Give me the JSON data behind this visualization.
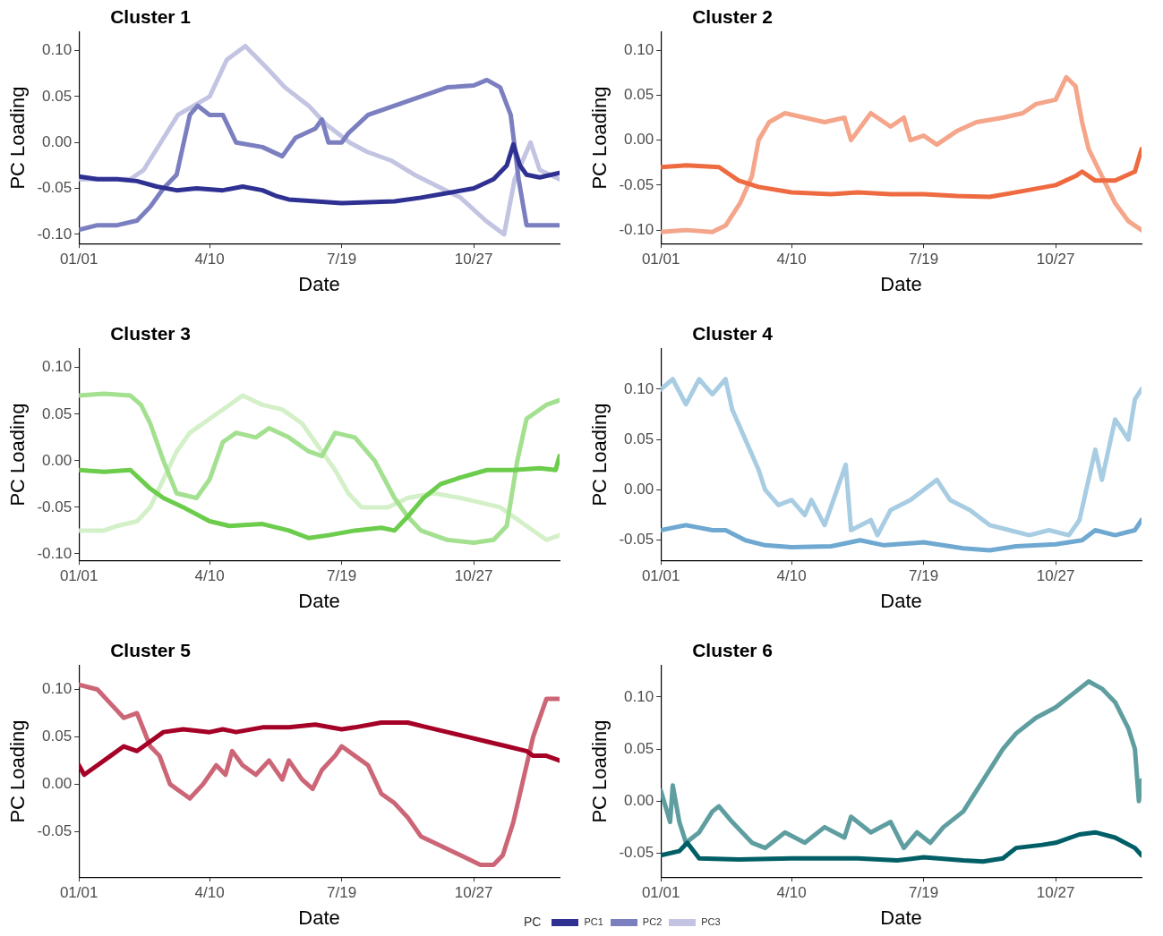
{
  "chart_data": [
    {
      "type": "line",
      "title": "Cluster 1",
      "xlabel": "Date",
      "ylabel": "PC Loading",
      "legend": "bottom",
      "legend_title": "PC",
      "marker": "none",
      "line_style": "solid",
      "xlim": [
        "--01-01",
        "--12-31"
      ],
      "xticks": [
        {
          "value": "--01-01",
          "label": "01/01"
        },
        {
          "value": "--04-10",
          "label": "4/10"
        },
        {
          "value": "--07-19",
          "label": "7/19"
        },
        {
          "value": "--10-27",
          "label": "10/27"
        }
      ],
      "ylim": [
        -0.11,
        0.12
      ],
      "yticks": [
        {
          "value": -0.1,
          "label": "-0.10"
        },
        {
          "value": -0.05,
          "label": "-0.05"
        },
        {
          "value": 0,
          "label": "0.00"
        },
        {
          "value": 0.05,
          "label": "0.05"
        },
        {
          "value": 0.1,
          "label": "0.10"
        }
      ],
      "series": [
        {
          "name": "PC1",
          "color": "#2e3192",
          "x": [
            "--01-01",
            "--01-15",
            "--01-30",
            "--02-14",
            "--03-01",
            "--03-16",
            "--03-31",
            "--04-20",
            "--05-05",
            "--05-20",
            "--05-30",
            "--06-09",
            "--06-29",
            "--07-19",
            "--08-08",
            "--08-28",
            "--09-17",
            "--10-07",
            "--10-27",
            "--11-11",
            "--11-21",
            "--11-26",
            "--12-01",
            "--12-06",
            "--12-16",
            "--12-31"
          ],
          "values": [
            -0.037,
            -0.04,
            -0.04,
            -0.042,
            -0.048,
            -0.052,
            -0.05,
            -0.052,
            -0.048,
            -0.052,
            -0.058,
            -0.062,
            -0.064,
            -0.066,
            -0.065,
            -0.064,
            -0.06,
            -0.055,
            -0.05,
            -0.04,
            -0.025,
            -0.002,
            -0.025,
            -0.035,
            -0.038,
            -0.033
          ]
        },
        {
          "name": "PC2",
          "color": "#7b7fc0",
          "x": [
            "--01-01",
            "--01-15",
            "--01-30",
            "--02-14",
            "--02-24",
            "--03-06",
            "--03-16",
            "--03-26",
            "--04-01",
            "--04-10",
            "--04-20",
            "--04-30",
            "--05-20",
            "--06-04",
            "--06-14",
            "--06-29",
            "--07-04",
            "--07-09",
            "--07-19",
            "--07-24",
            "--08-08",
            "--08-28",
            "--09-17",
            "--10-07",
            "--10-27",
            "--11-06",
            "--11-16",
            "--11-24",
            "--11-30",
            "--12-06",
            "--12-16",
            "--12-31"
          ],
          "values": [
            -0.095,
            -0.09,
            -0.09,
            -0.085,
            -0.07,
            -0.05,
            -0.035,
            0.03,
            0.04,
            0.03,
            0.03,
            0,
            -0.005,
            -0.015,
            0.005,
            0.015,
            0.025,
            0,
            0,
            0.01,
            0.03,
            0.04,
            0.05,
            0.06,
            0.062,
            0.068,
            0.06,
            0.03,
            -0.04,
            -0.09,
            -0.09,
            -0.09
          ]
        },
        {
          "name": "PC3",
          "color": "#c2c4e2",
          "x": [
            "--01-01",
            "--01-20",
            "--02-09",
            "--02-19",
            "--03-04",
            "--03-17",
            "--04-10",
            "--04-23",
            "--05-07",
            "--05-24",
            "--06-06",
            "--06-24",
            "--07-07",
            "--07-25",
            "--08-07",
            "--08-26",
            "--09-12",
            "--09-26",
            "--10-17",
            "--11-05",
            "--11-19",
            "--11-27",
            "--12-09",
            "--12-16",
            "--12-31"
          ],
          "values": [
            -0.04,
            -0.04,
            -0.04,
            -0.03,
            0,
            0.03,
            0.05,
            0.09,
            0.105,
            0.08,
            0.06,
            0.04,
            0.02,
            0,
            -0.01,
            -0.02,
            -0.035,
            -0.045,
            -0.06,
            -0.085,
            -0.1,
            -0.04,
            0,
            -0.03,
            -0.04
          ]
        }
      ]
    },
    {
      "type": "line",
      "title": "Cluster 2",
      "xlabel": "Date",
      "ylabel": "PC Loading",
      "marker": "none",
      "line_style": "solid",
      "xlim": [
        "--01-01",
        "--12-31"
      ],
      "xticks": [
        {
          "value": "--01-01",
          "label": "01/01"
        },
        {
          "value": "--04-10",
          "label": "4/10"
        },
        {
          "value": "--07-19",
          "label": "7/19"
        },
        {
          "value": "--10-27",
          "label": "10/27"
        }
      ],
      "ylim": [
        -0.115,
        0.12
      ],
      "yticks": [
        {
          "value": -0.1,
          "label": "-0.10"
        },
        {
          "value": -0.05,
          "label": "-0.05"
        },
        {
          "value": 0,
          "label": "0.00"
        },
        {
          "value": 0.05,
          "label": "0.05"
        },
        {
          "value": 0.1,
          "label": "0.10"
        }
      ],
      "series": [
        {
          "color": "#ee6a40",
          "x": [
            "--01-01",
            "--01-20",
            "--02-14",
            "--03-01",
            "--03-16",
            "--04-10",
            "--05-10",
            "--05-30",
            "--06-24",
            "--07-19",
            "--08-13",
            "--09-07",
            "--09-27",
            "--10-27",
            "--11-11",
            "--11-16",
            "--11-26",
            "--12-11",
            "--12-26",
            "--12-31"
          ],
          "values": [
            -0.03,
            -0.028,
            -0.03,
            -0.045,
            -0.052,
            -0.058,
            -0.06,
            -0.058,
            -0.06,
            -0.06,
            -0.062,
            -0.063,
            -0.058,
            -0.05,
            -0.04,
            -0.035,
            -0.045,
            -0.045,
            -0.035,
            -0.01
          ]
        },
        {
          "color": "#f4a58a",
          "x": [
            "--01-01",
            "--01-20",
            "--02-09",
            "--02-19",
            "--03-02",
            "--03-11",
            "--03-16",
            "--03-24",
            "--04-05",
            "--04-20",
            "--05-05",
            "--05-20",
            "--05-25",
            "--06-09",
            "--06-24",
            "--07-04",
            "--07-09",
            "--07-19",
            "--07-29",
            "--08-13",
            "--08-28",
            "--09-17",
            "--10-02",
            "--10-12",
            "--10-27",
            "--11-04",
            "--11-11",
            "--11-16",
            "--11-21",
            "--12-01",
            "--12-11",
            "--12-21",
            "--12-31"
          ],
          "values": [
            -0.102,
            -0.1,
            -0.102,
            -0.095,
            -0.07,
            -0.04,
            0,
            0.02,
            0.03,
            0.025,
            0.02,
            0.025,
            0,
            0.03,
            0.015,
            0.025,
            0,
            0.005,
            -0.005,
            0.01,
            0.02,
            0.025,
            0.03,
            0.04,
            0.045,
            0.07,
            0.06,
            0.02,
            -0.01,
            -0.04,
            -0.07,
            -0.09,
            -0.1
          ]
        }
      ]
    },
    {
      "type": "line",
      "title": "Cluster 3",
      "xlabel": "Date",
      "ylabel": "PC Loading",
      "marker": "none",
      "line_style": "solid",
      "xlim": [
        "--01-01",
        "--12-31"
      ],
      "xticks": [
        {
          "value": "--01-01",
          "label": "01/01"
        },
        {
          "value": "--04-10",
          "label": "4/10"
        },
        {
          "value": "--07-19",
          "label": "7/19"
        },
        {
          "value": "--10-27",
          "label": "10/27"
        }
      ],
      "ylim": [
        -0.107,
        0.12
      ],
      "yticks": [
        {
          "value": -0.1,
          "label": "-0.10"
        },
        {
          "value": -0.05,
          "label": "-0.05"
        },
        {
          "value": 0,
          "label": "0.00"
        },
        {
          "value": 0.05,
          "label": "0.05"
        },
        {
          "value": 0.1,
          "label": "0.10"
        }
      ],
      "series": [
        {
          "color": "#6ccc4b",
          "x": [
            "--01-01",
            "--01-20",
            "--02-09",
            "--02-24",
            "--03-06",
            "--03-21",
            "--04-10",
            "--04-25",
            "--05-20",
            "--06-09",
            "--06-24",
            "--07-09",
            "--07-29",
            "--08-18",
            "--08-28",
            "--09-07",
            "--09-19",
            "--10-02",
            "--10-17",
            "--11-06",
            "--11-26",
            "--12-16",
            "--12-28",
            "--12-31"
          ],
          "values": [
            -0.01,
            -0.012,
            -0.01,
            -0.03,
            -0.04,
            -0.05,
            -0.065,
            -0.07,
            -0.068,
            -0.075,
            -0.083,
            -0.08,
            -0.075,
            -0.072,
            -0.075,
            -0.06,
            -0.04,
            -0.025,
            -0.018,
            -0.01,
            -0.01,
            -0.008,
            -0.01,
            0.005
          ]
        },
        {
          "color": "#a3e08f",
          "x": [
            "--01-01",
            "--01-20",
            "--02-09",
            "--02-17",
            "--02-24",
            "--03-06",
            "--03-16",
            "--03-31",
            "--04-10",
            "--04-20",
            "--04-30",
            "--05-15",
            "--05-25",
            "--06-09",
            "--06-24",
            "--07-04",
            "--07-14",
            "--07-29",
            "--08-13",
            "--08-28",
            "--09-07",
            "--09-17",
            "--10-07",
            "--10-27",
            "--11-11",
            "--11-21",
            "--11-29",
            "--12-06",
            "--12-21",
            "--12-31"
          ],
          "values": [
            0.07,
            0.072,
            0.07,
            0.06,
            0.04,
            0,
            -0.035,
            -0.04,
            -0.02,
            0.02,
            0.03,
            0.025,
            0.035,
            0.025,
            0.01,
            0.005,
            0.03,
            0.025,
            0,
            -0.04,
            -0.06,
            -0.075,
            -0.085,
            -0.088,
            -0.085,
            -0.07,
            0,
            0.045,
            0.06,
            0.065
          ]
        },
        {
          "color": "#d4f0c8",
          "x": [
            "--01-01",
            "--01-20",
            "--01-30",
            "--02-14",
            "--02-24",
            "--03-06",
            "--03-16",
            "--03-26",
            "--04-10",
            "--04-25",
            "--05-05",
            "--05-20",
            "--06-04",
            "--06-19",
            "--07-04",
            "--07-14",
            "--07-24",
            "--08-03",
            "--08-23",
            "--09-07",
            "--09-27",
            "--10-17",
            "--11-01",
            "--11-16",
            "--12-06",
            "--12-21",
            "--12-31"
          ],
          "values": [
            -0.075,
            -0.075,
            -0.07,
            -0.065,
            -0.05,
            -0.02,
            0.01,
            0.03,
            0.045,
            0.06,
            0.07,
            0.06,
            0.055,
            0.04,
            0.01,
            -0.01,
            -0.035,
            -0.05,
            -0.05,
            -0.04,
            -0.035,
            -0.04,
            -0.045,
            -0.05,
            -0.07,
            -0.085,
            -0.08
          ]
        }
      ]
    },
    {
      "type": "line",
      "title": "Cluster 4",
      "xlabel": "Date",
      "ylabel": "PC Loading",
      "marker": "none",
      "line_style": "solid",
      "xlim": [
        "--01-01",
        "--12-31"
      ],
      "xticks": [
        {
          "value": "--01-01",
          "label": "01/01"
        },
        {
          "value": "--04-10",
          "label": "4/10"
        },
        {
          "value": "--07-19",
          "label": "7/19"
        },
        {
          "value": "--10-27",
          "label": "10/27"
        }
      ],
      "ylim": [
        -0.07,
        0.14
      ],
      "yticks": [
        {
          "value": -0.05,
          "label": "-0.05"
        },
        {
          "value": 0,
          "label": "0.00"
        },
        {
          "value": 0.05,
          "label": "0.05"
        },
        {
          "value": 0.1,
          "label": "0.10"
        }
      ],
      "series": [
        {
          "color": "#6fa8d0",
          "x": [
            "--01-01",
            "--01-20",
            "--02-09",
            "--02-19",
            "--03-06",
            "--03-21",
            "--04-10",
            "--05-10",
            "--06-01",
            "--06-19",
            "--07-19",
            "--08-18",
            "--09-07",
            "--09-27",
            "--10-27",
            "--11-16",
            "--11-26",
            "--12-11",
            "--12-26",
            "--12-31"
          ],
          "values": [
            -0.04,
            -0.035,
            -0.04,
            -0.04,
            -0.05,
            -0.055,
            -0.057,
            -0.056,
            -0.05,
            -0.055,
            -0.052,
            -0.058,
            -0.06,
            -0.056,
            -0.054,
            -0.05,
            -0.04,
            -0.045,
            -0.04,
            -0.03
          ]
        },
        {
          "color": "#a8cde3",
          "x": [
            "--01-01",
            "--01-10",
            "--01-20",
            "--01-30",
            "--02-09",
            "--02-19",
            "--02-24",
            "--03-06",
            "--03-16",
            "--03-21",
            "--03-31",
            "--04-10",
            "--04-20",
            "--04-25",
            "--05-05",
            "--05-21",
            "--05-25",
            "--06-09",
            "--06-14",
            "--06-24",
            "--07-09",
            "--07-19",
            "--07-29",
            "--08-08",
            "--08-23",
            "--09-07",
            "--09-22",
            "--10-07",
            "--10-22",
            "--11-06",
            "--11-14",
            "--11-26",
            "--12-01",
            "--12-11",
            "--12-21",
            "--12-26",
            "--12-31"
          ],
          "values": [
            0.1,
            0.11,
            0.085,
            0.11,
            0.095,
            0.11,
            0.08,
            0.05,
            0.02,
            0,
            -0.015,
            -0.01,
            -0.025,
            -0.01,
            -0.035,
            0.025,
            -0.04,
            -0.03,
            -0.045,
            -0.02,
            -0.01,
            0,
            0.01,
            -0.01,
            -0.02,
            -0.035,
            -0.04,
            -0.045,
            -0.04,
            -0.045,
            -0.03,
            0.04,
            0.01,
            0.07,
            0.05,
            0.09,
            0.1
          ]
        }
      ]
    },
    {
      "type": "line",
      "title": "Cluster 5",
      "xlabel": "Date",
      "ylabel": "PC Loading",
      "marker": "none",
      "line_style": "solid",
      "xlim": [
        "--01-01",
        "--12-31"
      ],
      "xticks": [
        {
          "value": "--01-01",
          "label": "01/01"
        },
        {
          "value": "--04-10",
          "label": "4/10"
        },
        {
          "value": "--07-19",
          "label": "7/19"
        },
        {
          "value": "--10-27",
          "label": "10/27"
        }
      ],
      "ylim": [
        -0.098,
        0.125
      ],
      "yticks": [
        {
          "value": -0.05,
          "label": "-0.05"
        },
        {
          "value": 0,
          "label": "0.00"
        },
        {
          "value": 0.05,
          "label": "0.05"
        },
        {
          "value": 0.1,
          "label": "0.10"
        }
      ],
      "series": [
        {
          "color": "#a50026",
          "x": [
            "--01-01",
            "--01-05",
            "--01-15",
            "--01-25",
            "--02-04",
            "--02-14",
            "--02-24",
            "--03-06",
            "--03-21",
            "--04-10",
            "--04-20",
            "--04-30",
            "--05-20",
            "--06-09",
            "--06-29",
            "--07-19",
            "--07-29",
            "--08-18",
            "--09-07",
            "--09-22",
            "--10-07",
            "--10-22",
            "--11-06",
            "--11-21",
            "--12-06",
            "--12-11",
            "--12-21",
            "--12-31"
          ],
          "values": [
            0.02,
            0.01,
            0.02,
            0.03,
            0.04,
            0.035,
            0.045,
            0.055,
            0.058,
            0.055,
            0.058,
            0.055,
            0.06,
            0.06,
            0.063,
            0.058,
            0.06,
            0.065,
            0.065,
            0.06,
            0.055,
            0.05,
            0.045,
            0.04,
            0.035,
            0.03,
            0.03,
            0.025
          ]
        },
        {
          "color": "#cc6677",
          "x": [
            "--01-01",
            "--01-15",
            "--01-25",
            "--02-04",
            "--02-14",
            "--02-24",
            "--03-03",
            "--03-11",
            "--03-21",
            "--03-26",
            "--04-05",
            "--04-15",
            "--04-22",
            "--04-27",
            "--05-05",
            "--05-15",
            "--05-25",
            "--06-04",
            "--06-09",
            "--06-19",
            "--06-27",
            "--07-04",
            "--07-14",
            "--07-19",
            "--07-29",
            "--08-08",
            "--08-18",
            "--08-28",
            "--09-07",
            "--09-17",
            "--10-02",
            "--10-17",
            "--11-01",
            "--11-11",
            "--11-18",
            "--11-26",
            "--12-06",
            "--12-11",
            "--12-21",
            "--12-31"
          ],
          "values": [
            0.105,
            0.1,
            0.085,
            0.07,
            0.075,
            0.04,
            0.03,
            0,
            -0.01,
            -0.015,
            0,
            0.02,
            0.01,
            0.035,
            0.02,
            0.01,
            0.025,
            0.005,
            0.025,
            0.005,
            -0.005,
            0.015,
            0.03,
            0.04,
            0.03,
            0.02,
            -0.01,
            -0.02,
            -0.035,
            -0.055,
            -0.065,
            -0.075,
            -0.085,
            -0.085,
            -0.075,
            -0.04,
            0.02,
            0.05,
            0.09,
            0.09
          ]
        }
      ]
    },
    {
      "type": "line",
      "title": "Cluster 6",
      "xlabel": "Date",
      "ylabel": "PC Loading",
      "marker": "none",
      "line_style": "solid",
      "xlim": [
        "--01-01",
        "--12-31"
      ],
      "xticks": [
        {
          "value": "--01-01",
          "label": "01/01"
        },
        {
          "value": "--04-10",
          "label": "4/10"
        },
        {
          "value": "--07-19",
          "label": "7/19"
        },
        {
          "value": "--10-27",
          "label": "10/27"
        }
      ],
      "ylim": [
        -0.073,
        0.13
      ],
      "yticks": [
        {
          "value": -0.05,
          "label": "-0.05"
        },
        {
          "value": 0,
          "label": "0.00"
        },
        {
          "value": 0.05,
          "label": "0.05"
        },
        {
          "value": 0.1,
          "label": "0.10"
        }
      ],
      "series": [
        {
          "color": "#005f66",
          "x": [
            "--01-01",
            "--01-15",
            "--01-21",
            "--01-30",
            "--03-01",
            "--04-10",
            "--05-30",
            "--06-29",
            "--07-19",
            "--08-18",
            "--09-02",
            "--09-17",
            "--09-27",
            "--10-17",
            "--10-27",
            "--11-14",
            "--11-26",
            "--12-11",
            "--12-26",
            "--12-31"
          ],
          "values": [
            -0.052,
            -0.048,
            -0.04,
            -0.055,
            -0.056,
            -0.055,
            -0.055,
            -0.057,
            -0.054,
            -0.057,
            -0.058,
            -0.055,
            -0.045,
            -0.042,
            -0.04,
            -0.032,
            -0.03,
            -0.035,
            -0.045,
            -0.052
          ]
        },
        {
          "color": "#5f9ea0",
          "x": [
            "--01-01",
            "--01-08",
            "--01-10",
            "--01-15",
            "--01-20",
            "--01-30",
            "--02-09",
            "--02-14",
            "--02-24",
            "--03-11",
            "--03-21",
            "--04-05",
            "--04-20",
            "--05-05",
            "--05-20",
            "--05-25",
            "--06-09",
            "--06-24",
            "--07-04",
            "--07-14",
            "--07-24",
            "--08-03",
            "--08-18",
            "--08-28",
            "--09-07",
            "--09-17",
            "--09-27",
            "--10-12",
            "--10-27",
            "--11-11",
            "--11-21",
            "--12-01",
            "--12-11",
            "--12-21",
            "--12-26",
            "--12-29",
            "--12-31"
          ],
          "values": [
            0.01,
            -0.02,
            0.015,
            -0.02,
            -0.04,
            -0.03,
            -0.01,
            -0.005,
            -0.02,
            -0.04,
            -0.045,
            -0.03,
            -0.04,
            -0.025,
            -0.035,
            -0.015,
            -0.03,
            -0.02,
            -0.045,
            -0.03,
            -0.04,
            -0.025,
            -0.01,
            0.01,
            0.03,
            0.05,
            0.065,
            0.08,
            0.09,
            0.105,
            0.115,
            0.108,
            0.095,
            0.07,
            0.05,
            0,
            0.02
          ]
        }
      ]
    }
  ]
}
